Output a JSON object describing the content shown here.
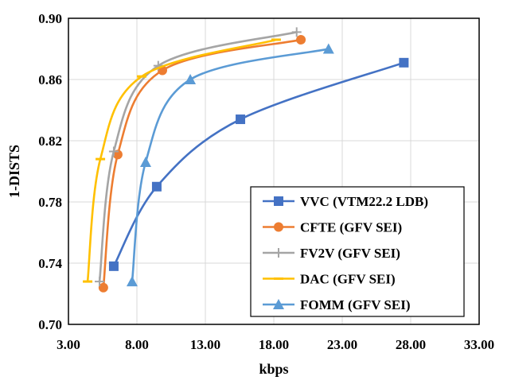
{
  "chart_data": {
    "type": "line",
    "xlabel": "kbps",
    "ylabel": "1-DISTS",
    "xlim": [
      3,
      33
    ],
    "ylim": [
      0.7,
      0.9
    ],
    "xticks": [
      "3.00",
      "8.00",
      "13.00",
      "18.00",
      "23.00",
      "28.00",
      "33.00"
    ],
    "yticks": [
      "0.70",
      "0.74",
      "0.78",
      "0.82",
      "0.86",
      "0.90"
    ],
    "grid": true,
    "legend": "bottom-right",
    "series": [
      {
        "name": "VVC (VTM22.2 LDB)",
        "color": "#4472C4",
        "marker": "square",
        "x": [
          6.31,
          9.45,
          15.56,
          27.5
        ],
        "y": [
          0.738,
          0.79,
          0.834,
          0.871
        ]
      },
      {
        "name": "CFTE (GFV SEI)",
        "color": "#ED7D31",
        "marker": "circle",
        "x": [
          5.55,
          6.6,
          9.86,
          19.98
        ],
        "y": [
          0.724,
          0.811,
          0.866,
          0.886
        ]
      },
      {
        "name": "FV2V (GFV SEI)",
        "color": "#A5A5A5",
        "marker": "plus",
        "x": [
          5.27,
          6.31,
          9.56,
          19.67
        ],
        "y": [
          0.728,
          0.813,
          0.869,
          0.891
        ]
      },
      {
        "name": "DAC (GFV SEI)",
        "color": "#FFC000",
        "marker": "dash",
        "x": [
          4.4,
          5.33,
          8.35,
          18.17
        ],
        "y": [
          0.728,
          0.808,
          0.862,
          0.886
        ]
      },
      {
        "name": "FOMM (GFV SEI)",
        "color": "#5B9BD5",
        "marker": "triangle",
        "x": [
          7.65,
          8.64,
          11.9,
          22.0
        ],
        "y": [
          0.728,
          0.806,
          0.86,
          0.88
        ]
      }
    ]
  }
}
